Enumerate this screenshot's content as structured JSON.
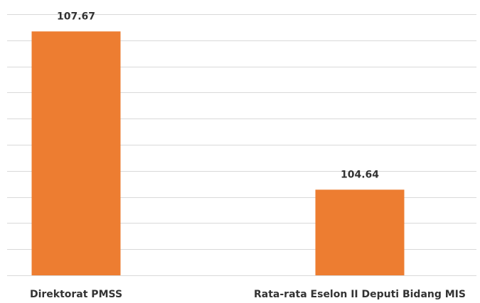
{
  "chart_data": {
    "type": "bar",
    "categories": [
      "Direktorat PMSS",
      "Rata-rata Eselon II Deputi Bidang MIS"
    ],
    "values": [
      107.67,
      104.64
    ],
    "color": "#ed7d31",
    "ylim": [
      103,
      108
    ],
    "yticks": [
      103,
      103.5,
      104,
      104.5,
      105,
      105.5,
      106,
      106.5,
      107,
      107.5,
      108
    ],
    "grid": true
  }
}
